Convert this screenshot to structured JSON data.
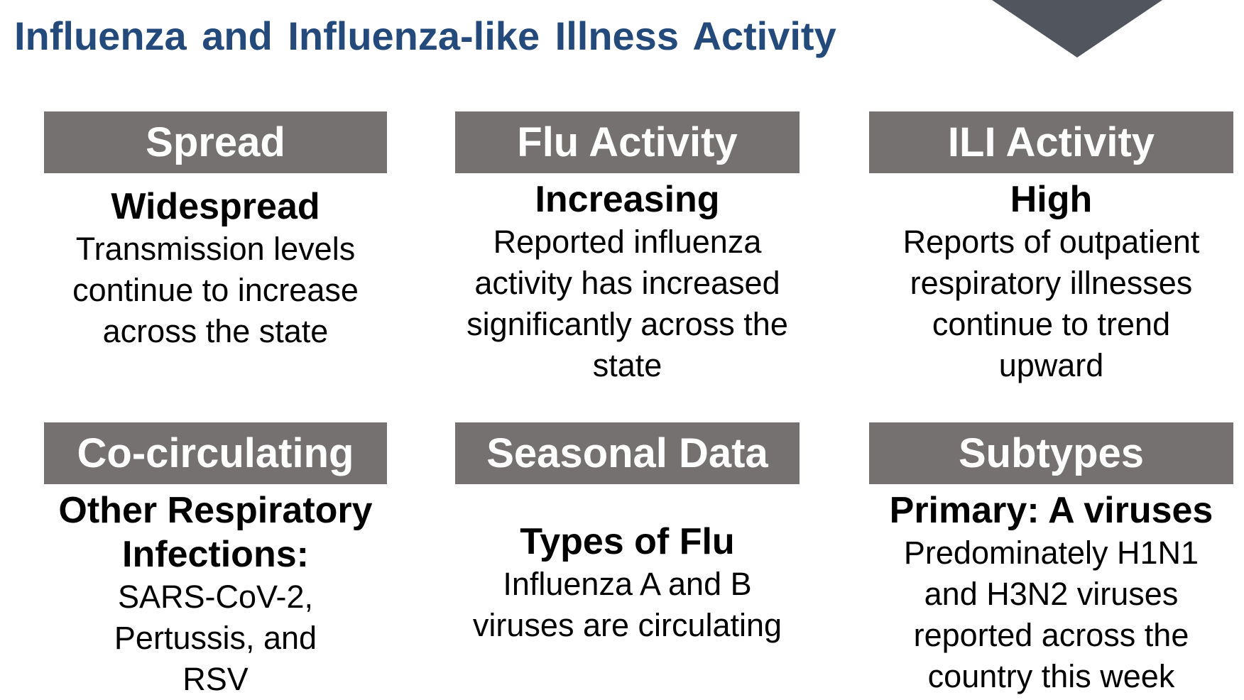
{
  "title": "Influenza and Influenza-like Illness Activity",
  "colors": {
    "title": "#244a7c",
    "header_bg": "#757171",
    "arrow": "#50555e"
  },
  "cards": [
    {
      "header": "Spread",
      "subtitle": "Widespread",
      "text": "Transmission levels continue to increase across the state"
    },
    {
      "header": "Flu Activity",
      "subtitle": "Increasing",
      "text": "Reported influenza activity has increased significantly across the state"
    },
    {
      "header": "ILI Activity",
      "subtitle": "High",
      "text": "Reports of outpatient respiratory illnesses continue to trend upward"
    },
    {
      "header": "Co-circulating",
      "subtitle": "Other Respiratory Infections:",
      "text": "SARS-CoV-2, Pertussis, and RSV"
    },
    {
      "header": "Seasonal Data",
      "subtitle": "Types of Flu",
      "text": "Influenza A and B viruses are circulating"
    },
    {
      "header": "Subtypes",
      "subtitle": "Primary: A viruses",
      "text": "Predominately H1N1 and H3N2 viruses reported across the country this week"
    }
  ]
}
